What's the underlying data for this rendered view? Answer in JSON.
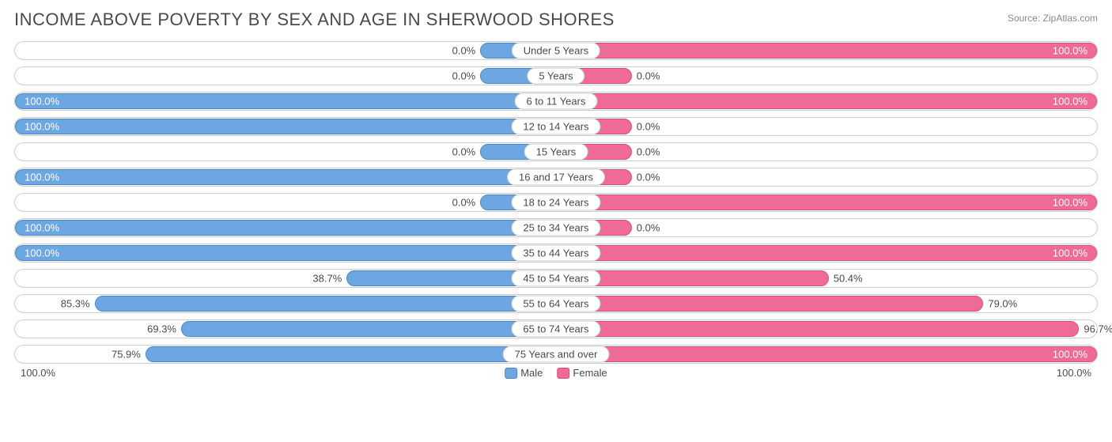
{
  "title": "INCOME ABOVE POVERTY BY SEX AND AGE IN SHERWOOD SHORES",
  "source": "Source: ZipAtlas.com",
  "chart": {
    "type": "diverging-bar",
    "male_color": "#6da6e0",
    "male_border": "#4a88c9",
    "female_color": "#ed6b94",
    "female_border": "#d94f7b",
    "row_border": "#cccccc",
    "background": "#ffffff",
    "text_color": "#4a4a4a",
    "min_bar_pct": 14,
    "categories": [
      {
        "label": "Under 5 Years",
        "male": 0.0,
        "male_label": "0.0%",
        "female": 100.0,
        "female_label": "100.0%"
      },
      {
        "label": "5 Years",
        "male": 0.0,
        "male_label": "0.0%",
        "female": 0.0,
        "female_label": "0.0%"
      },
      {
        "label": "6 to 11 Years",
        "male": 100.0,
        "male_label": "100.0%",
        "female": 100.0,
        "female_label": "100.0%"
      },
      {
        "label": "12 to 14 Years",
        "male": 100.0,
        "male_label": "100.0%",
        "female": 0.0,
        "female_label": "0.0%"
      },
      {
        "label": "15 Years",
        "male": 0.0,
        "male_label": "0.0%",
        "female": 0.0,
        "female_label": "0.0%"
      },
      {
        "label": "16 and 17 Years",
        "male": 100.0,
        "male_label": "100.0%",
        "female": 0.0,
        "female_label": "0.0%"
      },
      {
        "label": "18 to 24 Years",
        "male": 0.0,
        "male_label": "0.0%",
        "female": 100.0,
        "female_label": "100.0%"
      },
      {
        "label": "25 to 34 Years",
        "male": 100.0,
        "male_label": "100.0%",
        "female": 0.0,
        "female_label": "0.0%"
      },
      {
        "label": "35 to 44 Years",
        "male": 100.0,
        "male_label": "100.0%",
        "female": 100.0,
        "female_label": "100.0%"
      },
      {
        "label": "45 to 54 Years",
        "male": 38.7,
        "male_label": "38.7%",
        "female": 50.4,
        "female_label": "50.4%"
      },
      {
        "label": "55 to 64 Years",
        "male": 85.3,
        "male_label": "85.3%",
        "female": 79.0,
        "female_label": "79.0%"
      },
      {
        "label": "65 to 74 Years",
        "male": 69.3,
        "male_label": "69.3%",
        "female": 96.7,
        "female_label": "96.7%"
      },
      {
        "label": "75 Years and over",
        "male": 75.9,
        "male_label": "75.9%",
        "female": 100.0,
        "female_label": "100.0%"
      }
    ],
    "axis": {
      "left": "100.0%",
      "right": "100.0%"
    },
    "legend": [
      {
        "label": "Male",
        "fill": "#6da6e0",
        "border": "#4a88c9"
      },
      {
        "label": "Female",
        "fill": "#ed6b94",
        "border": "#d94f7b"
      }
    ]
  }
}
